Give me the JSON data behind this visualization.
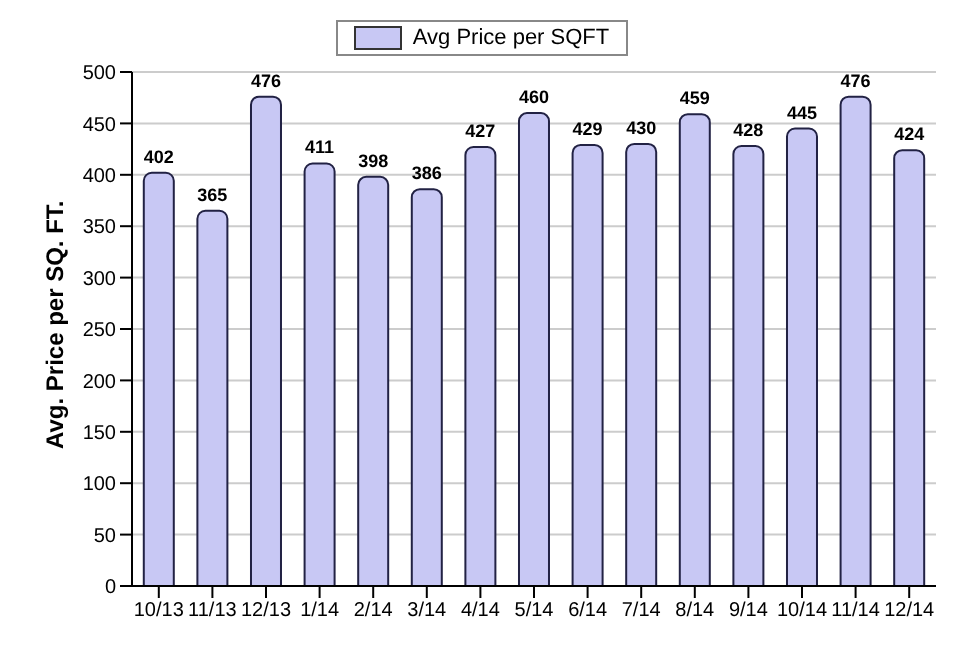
{
  "chart_data": {
    "type": "bar",
    "ylabel": "Avg. Price per SQ. FT.",
    "categories": [
      "10/13",
      "11/13",
      "12/13",
      "1/14",
      "2/14",
      "3/14",
      "4/14",
      "5/14",
      "6/14",
      "7/14",
      "8/14",
      "9/14",
      "10/14",
      "11/14",
      "12/14"
    ],
    "series": [
      {
        "name": "Avg Price per SQFT",
        "color": "#c8c8f4",
        "values": [
          402,
          365,
          476,
          411,
          398,
          386,
          427,
          460,
          429,
          430,
          459,
          428,
          445,
          476,
          424
        ]
      }
    ],
    "ylim": [
      0,
      500
    ],
    "yticks": [
      0,
      50,
      100,
      150,
      200,
      250,
      300,
      350,
      400,
      450,
      500
    ],
    "grid": "y",
    "legend": "top",
    "data_labels": true
  }
}
